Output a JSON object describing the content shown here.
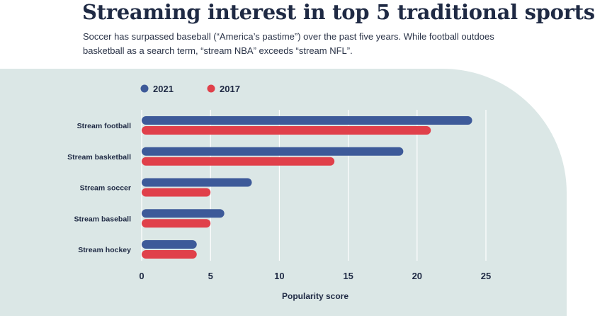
{
  "title": "Streaming interest in top 5 traditional sports",
  "subtitle": "Soccer has surpassed baseball (“America’s pastime”) over the past five years. While football outdoes basketball as a search term, “stream NBA” exceeds “stream NFL”.",
  "colors": {
    "series_2021": "#3d5a99",
    "series_2017": "#e0404a",
    "panel": "#dbe7e6",
    "text": "#1f2a44"
  },
  "chart_data": {
    "type": "bar",
    "orientation": "horizontal",
    "categories": [
      "Stream football",
      "Stream basketball",
      "Stream soccer",
      "Stream baseball",
      "Stream hockey"
    ],
    "series": [
      {
        "name": "2021",
        "values": [
          24,
          19,
          8,
          6,
          4
        ]
      },
      {
        "name": "2017",
        "values": [
          21,
          14,
          5,
          5,
          4
        ]
      }
    ],
    "xlabel": "Popularity score",
    "ylabel": "",
    "xlim": [
      0,
      25
    ],
    "xticks": [
      "0",
      "5",
      "10",
      "15",
      "20",
      "25"
    ],
    "grid": true,
    "legend": "top-left"
  }
}
